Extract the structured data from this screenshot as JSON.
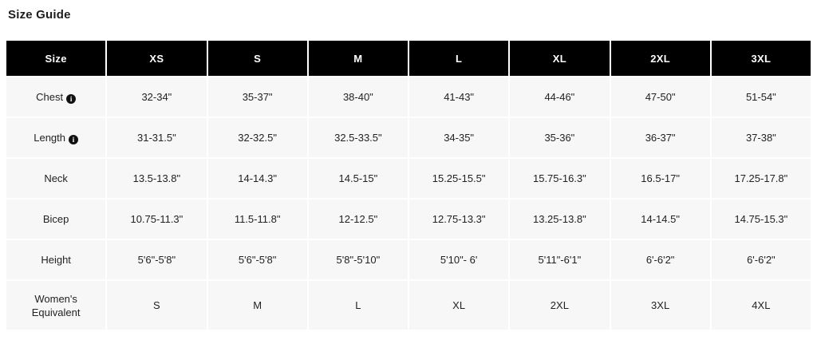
{
  "page_title": "Size Guide",
  "colors": {
    "header_bg": "#000000",
    "header_text": "#ffffff",
    "row_bg": "#f7f7f7",
    "cell_text": "#222222"
  },
  "table": {
    "columns": [
      "Size",
      "XS",
      "S",
      "M",
      "L",
      "XL",
      "2XL",
      "3XL"
    ],
    "rows": [
      {
        "label": "Chest",
        "has_info_icon": true,
        "values": [
          "32-34\"",
          "35-37\"",
          "38-40\"",
          "41-43\"",
          "44-46\"",
          "47-50\"",
          "51-54\""
        ]
      },
      {
        "label": "Length",
        "has_info_icon": true,
        "values": [
          "31-31.5\"",
          "32-32.5\"",
          "32.5-33.5\"",
          "34-35\"",
          "35-36\"",
          "36-37\"",
          "37-38\""
        ]
      },
      {
        "label": "Neck",
        "has_info_icon": false,
        "values": [
          "13.5-13.8\"",
          "14-14.3\"",
          "14.5-15\"",
          "15.25-15.5\"",
          "15.75-16.3\"",
          "16.5-17\"",
          "17.25-17.8\""
        ]
      },
      {
        "label": "Bicep",
        "has_info_icon": false,
        "values": [
          "10.75-11.3\"",
          "11.5-11.8\"",
          "12-12.5\"",
          "12.75-13.3\"",
          "13.25-13.8\"",
          "14-14.5\"",
          "14.75-15.3\""
        ]
      },
      {
        "label": "Height",
        "has_info_icon": false,
        "values": [
          "5'6\"-5'8\"",
          "5'6\"-5'8\"",
          "5'8\"-5'10\"",
          "5'10\"- 6'",
          "5'11\"-6'1\"",
          "6'-6'2\"",
          "6'-6'2\""
        ]
      },
      {
        "label": "Women's Equivalent",
        "has_info_icon": false,
        "values": [
          "S",
          "M",
          "L",
          "XL",
          "2XL",
          "3XL",
          "4XL"
        ]
      }
    ],
    "info_icon_glyph": "i"
  }
}
